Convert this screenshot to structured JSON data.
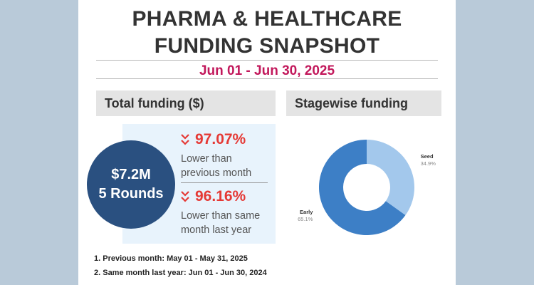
{
  "header": {
    "title_line1": "PHARMA & HEALTHCARE",
    "title_line2": "FUNDING SNAPSHOT",
    "date_range": "Jun 01 - Jun 30, 2025"
  },
  "total_funding": {
    "heading": "Total funding ($)",
    "amount": "$7.2M",
    "rounds": "5 Rounds",
    "metrics": [
      {
        "percent": "97.07%",
        "desc_line1": "Lower than",
        "desc_line2": "previous month"
      },
      {
        "percent": "96.16%",
        "desc_line1": "Lower than same",
        "desc_line2": "month last year"
      }
    ]
  },
  "stagewise": {
    "heading": "Stagewise funding"
  },
  "footnotes": [
    "1. Previous month: May 01 - May 31, 2025",
    "2. Same month last year: Jun 01 - Jun 30, 2024"
  ],
  "colors": {
    "accent_red": "#e53935",
    "date_magenta": "#c2185b",
    "circle_navy": "#2a5080",
    "seed": "#a3c8ec",
    "early": "#3d7fc6"
  },
  "chart_data": {
    "type": "pie",
    "donut": true,
    "slices": [
      {
        "label": "Seed",
        "value": 34.9,
        "value_label": "34.9%",
        "color": "#a3c8ec"
      },
      {
        "label": "Early",
        "value": 65.1,
        "value_label": "65.1%",
        "color": "#3d7fc6"
      }
    ]
  }
}
